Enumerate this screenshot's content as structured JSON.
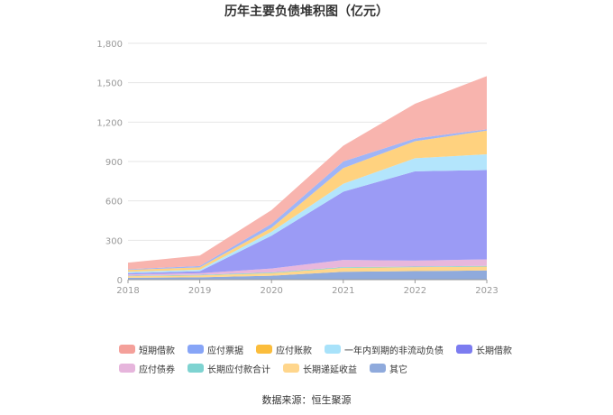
{
  "chart_data": {
    "type": "area",
    "stacked": true,
    "title": "历年主要负债堆积图（亿元）",
    "x": [
      "2018",
      "2019",
      "2020",
      "2021",
      "2022",
      "2023"
    ],
    "ylim": [
      0,
      1800
    ],
    "yticks": [
      "0",
      "300",
      "600",
      "900",
      "1,200",
      "1,500",
      "1,800"
    ],
    "grid": true,
    "legend_position": "bottom",
    "series": [
      {
        "name": "其它",
        "color": "#8FAADC",
        "values": [
          15,
          18,
          30,
          60,
          65,
          70
        ]
      },
      {
        "name": "长期递延收益",
        "color": "#FFD68C",
        "values": [
          12,
          15,
          20,
          30,
          30,
          30
        ]
      },
      {
        "name": "长期应付款合计",
        "color": "#7ED3D1",
        "values": [
          3,
          4,
          5,
          5,
          5,
          5
        ]
      },
      {
        "name": "应付债券",
        "color": "#E8B7DC",
        "values": [
          10,
          12,
          30,
          55,
          45,
          50
        ]
      },
      {
        "name": "长期借款",
        "color": "#9B9BF5",
        "values": [
          10,
          15,
          250,
          520,
          680,
          680
        ]
      },
      {
        "name": "一年内到期的非流动负债",
        "color": "#B3E5FC",
        "values": [
          10,
          12,
          30,
          60,
          100,
          120
        ]
      },
      {
        "name": "应付账款",
        "color": "#FFD27F",
        "values": [
          15,
          18,
          30,
          120,
          130,
          180
        ]
      },
      {
        "name": "应付票据",
        "color": "#9FB5F7",
        "values": [
          5,
          10,
          30,
          50,
          20,
          10
        ]
      },
      {
        "name": "短期借款",
        "color": "#F8B4AE",
        "values": [
          50,
          80,
          105,
          120,
          265,
          405
        ]
      }
    ]
  },
  "legend": {
    "rows": [
      [
        {
          "label": "短期借款",
          "color": "#F4A09A"
        },
        {
          "label": "应付票据",
          "color": "#87A5F7"
        },
        {
          "label": "应付账款",
          "color": "#FBBD3C"
        },
        {
          "label": "一年内到期的非流动负债",
          "color": "#A8E2FA"
        },
        {
          "label": "长期借款",
          "color": "#7C7CF0"
        }
      ],
      [
        {
          "label": "应付债券",
          "color": "#E6B5DC"
        },
        {
          "label": "长期应付款合计",
          "color": "#7ED3D1"
        },
        {
          "label": "长期递延收益",
          "color": "#FFD68C"
        },
        {
          "label": "其它",
          "color": "#8FAADC"
        }
      ]
    ]
  },
  "source": "数据来源：恒生聚源"
}
